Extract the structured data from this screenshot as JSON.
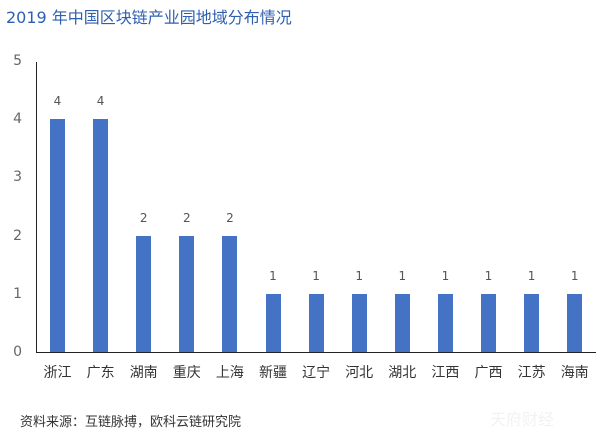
{
  "chart_data": {
    "type": "bar",
    "title": "2019 年中国区块链产业园地域分布情况",
    "categories": [
      "浙江",
      "广东",
      "湖南",
      "重庆",
      "上海",
      "新疆",
      "辽宁",
      "河北",
      "湖北",
      "江西",
      "广西",
      "江苏",
      "海南"
    ],
    "values": [
      4,
      4,
      2,
      2,
      2,
      1,
      1,
      1,
      1,
      1,
      1,
      1,
      1
    ],
    "xlabel": "",
    "ylabel": "",
    "ylim": [
      0,
      5
    ],
    "yticks": [
      0,
      1,
      2,
      3,
      4,
      5
    ],
    "grid": false,
    "data_labels": true,
    "bar_color": "#4472c4"
  },
  "footer": {
    "source": "资料来源：互链脉搏，欧科云链研究院",
    "watermark": "天府财经"
  }
}
